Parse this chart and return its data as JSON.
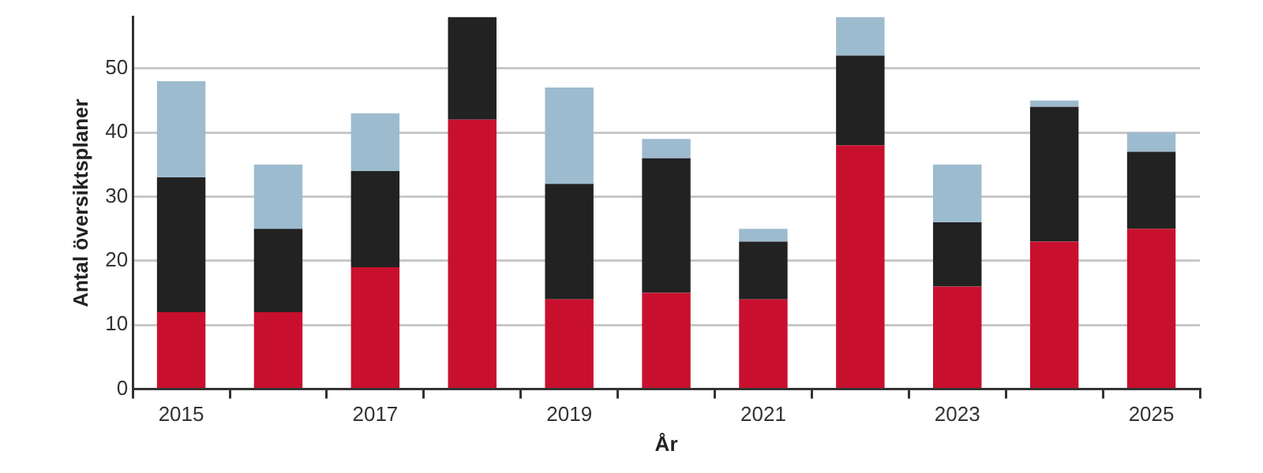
{
  "chart_data": {
    "type": "bar",
    "stacked": true,
    "xlabel": "År",
    "ylabel": "Antal översiktsplaner",
    "categories": [
      "2015",
      null,
      "2017",
      null,
      "2019",
      null,
      "2021",
      null,
      "2023",
      null,
      "2025"
    ],
    "series": [
      {
        "color": "#c8102e",
        "values": [
          12,
          12,
          19,
          42,
          14,
          15,
          14,
          38,
          16,
          23,
          25
        ]
      },
      {
        "color": "#222222",
        "values": [
          21,
          13,
          15,
          16,
          18,
          21,
          9,
          14,
          10,
          21,
          12
        ]
      },
      {
        "color": "#9dbbcf",
        "values": [
          15,
          10,
          9,
          null,
          15,
          3,
          2,
          6,
          9,
          1,
          3
        ]
      }
    ],
    "ylim": [
      0,
      58
    ],
    "yticks": [
      0,
      10,
      20,
      30,
      40,
      50
    ],
    "grid": "y",
    "legend": false
  }
}
